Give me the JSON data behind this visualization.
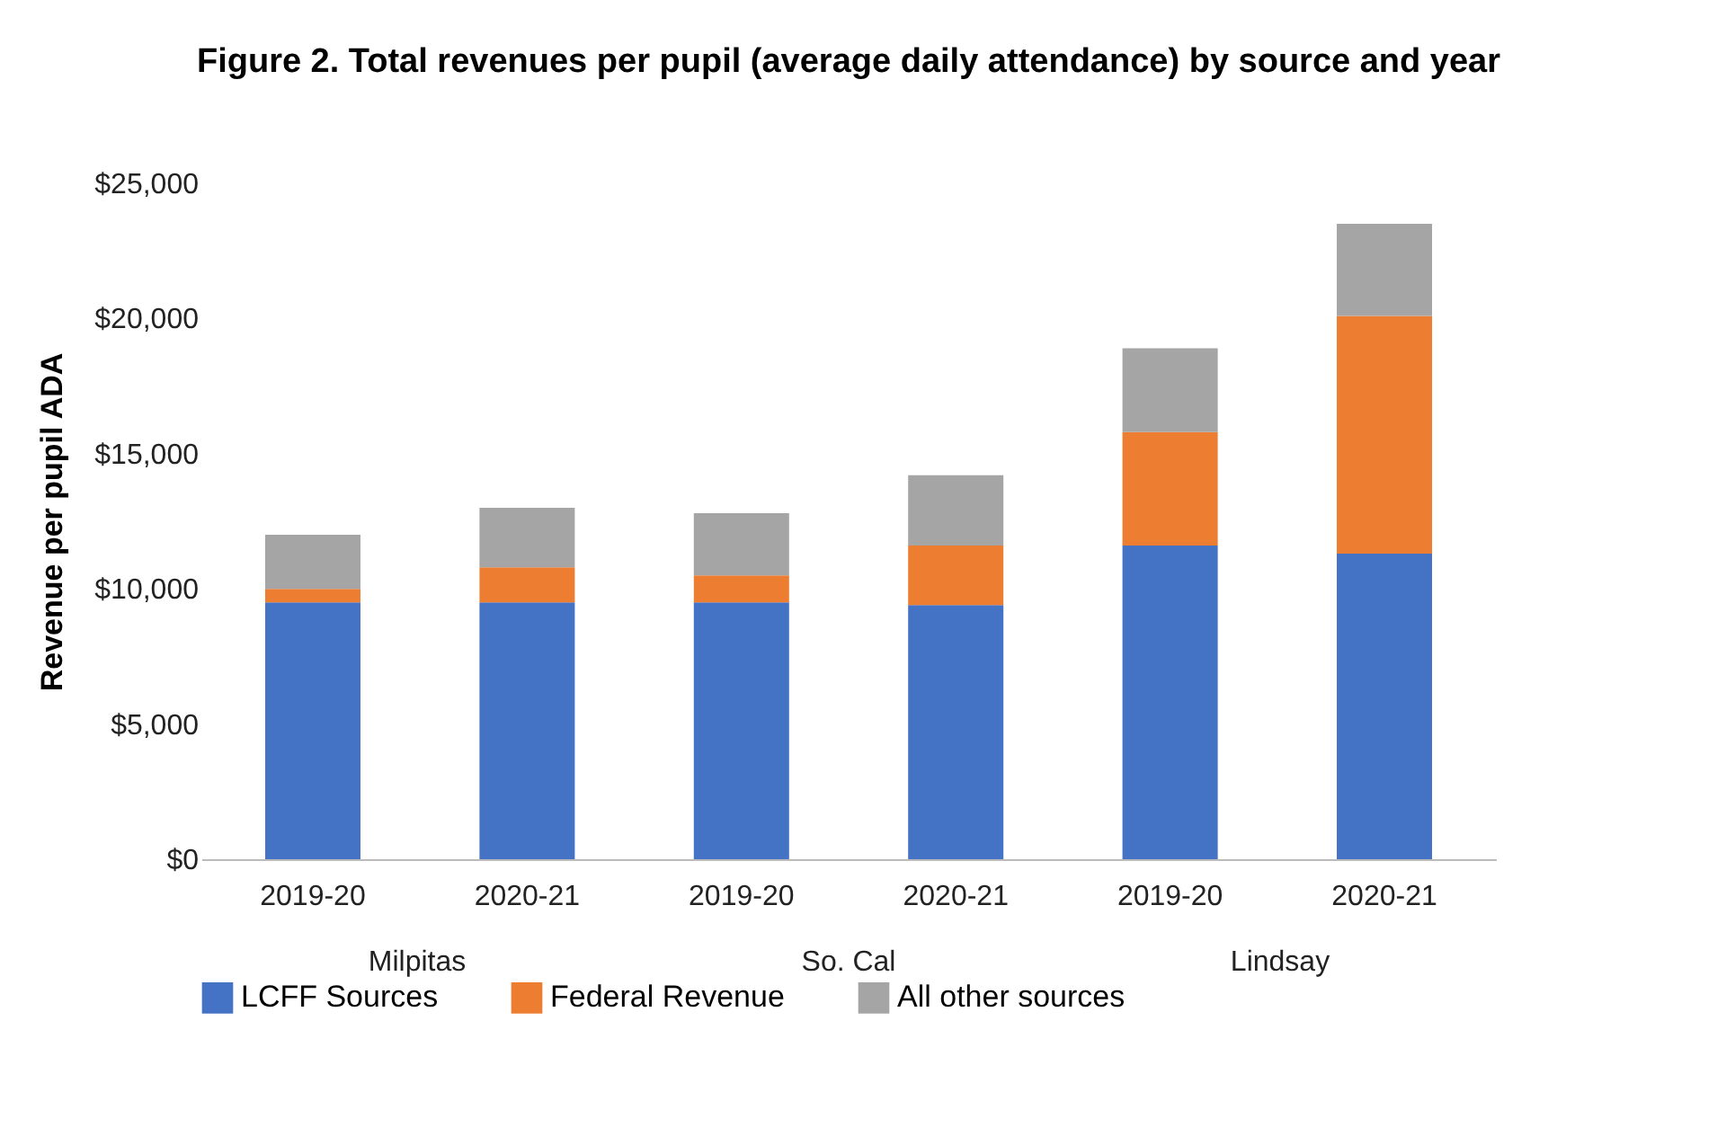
{
  "chart_data": {
    "type": "bar",
    "title": "Figure 2. Total revenues per pupil (average daily attendance) by source and year",
    "ylabel": "Revenue per pupil ADA",
    "categories": [
      "2019-20",
      "2020-21",
      "2019-20",
      "2020-21",
      "2019-20",
      "2020-21"
    ],
    "annotations": [
      "Milpitas",
      "So. Cal",
      "Lindsay"
    ],
    "stacked": true,
    "series": [
      {
        "name": "LCFF Sources",
        "color": "#4472c4",
        "values": [
          9500,
          9500,
          9500,
          9400,
          11600,
          11300
        ]
      },
      {
        "name": "Federal Revenue",
        "color": "#ed7d31",
        "values": [
          500,
          1300,
          1000,
          2200,
          4200,
          8800
        ]
      },
      {
        "name": "All other sources",
        "color": "#a5a5a5",
        "values": [
          2000,
          2200,
          2300,
          2600,
          3100,
          3400
        ]
      }
    ],
    "ylim": [
      0,
      25000
    ],
    "yticks": [
      {
        "value": 0,
        "label": "$0"
      },
      {
        "value": 5000,
        "label": "$5,000"
      },
      {
        "value": 10000,
        "label": "$10,000"
      },
      {
        "value": 15000,
        "label": "$15,000"
      },
      {
        "value": 20000,
        "label": "$20,000"
      },
      {
        "value": 25000,
        "label": "$25,000"
      }
    ],
    "legend": "bottom"
  }
}
